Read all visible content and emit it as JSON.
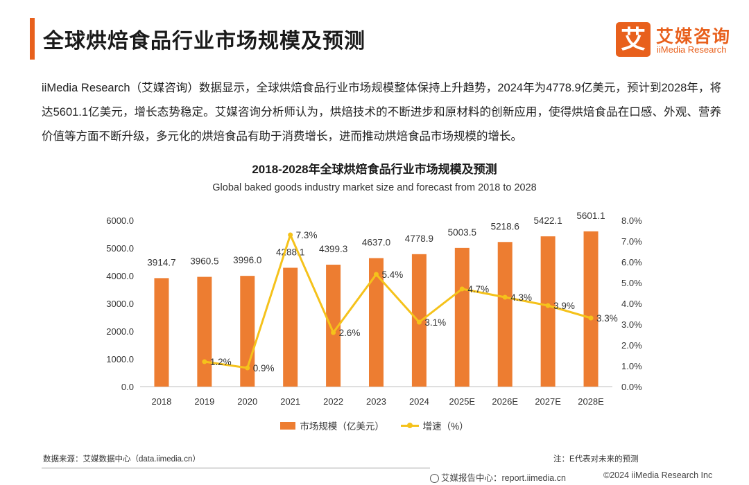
{
  "header": {
    "title": "全球烘焙食品行业市场规模及预测",
    "logo_mark": "艾",
    "logo_cn": "艾媒咨询",
    "logo_en": "iiMedia Research"
  },
  "intro": "iiMedia Research（艾媒咨询）数据显示，全球烘焙食品行业市场规模整体保持上升趋势，2024年为4778.9亿美元，预计到2028年，将达5601.1亿美元，增长态势稳定。艾媒咨询分析师认为，烘焙技术的不断进步和原材料的创新应用，使得烘焙食品在口感、外观、营养价值等方面不断升级，多元化的烘焙食品有助于消费增长，进而推动烘焙食品市场规模的增长。",
  "chart_data": {
    "type": "bar",
    "title": "2018-2028年全球烘焙食品行业市场规模及预测",
    "subtitle": "Global baked goods industry market size and forecast from 2018 to 2028",
    "categories": [
      "2018",
      "2019",
      "2020",
      "2021",
      "2022",
      "2023",
      "2024",
      "2025E",
      "2026E",
      "2027E",
      "2028E"
    ],
    "series": [
      {
        "name": "市场规模（亿美元）",
        "type": "bar",
        "axis": "left",
        "values": [
          3914.7,
          3960.5,
          3996.0,
          4288.1,
          4399.3,
          4637.0,
          4778.9,
          5003.5,
          5218.6,
          5422.1,
          5601.1
        ],
        "labels": [
          "3914.7",
          "3960.5",
          "3996.0",
          "4288.1",
          "4399.3",
          "4637.0",
          "4778.9",
          "5003.5",
          "5218.6",
          "5422.1",
          "5601.1"
        ]
      },
      {
        "name": "增速（%）",
        "type": "line",
        "axis": "right",
        "values": [
          null,
          1.2,
          0.9,
          7.3,
          2.6,
          5.4,
          3.1,
          4.7,
          4.3,
          3.9,
          3.3
        ],
        "labels": [
          "",
          "1.2%",
          "0.9%",
          "7.3%",
          "2.6%",
          "5.4%",
          "3.1%",
          "4.7%",
          "4.3%",
          "3.9%",
          "3.3%"
        ]
      }
    ],
    "y_left": {
      "min": 0,
      "max": 6000,
      "ticks": [
        "0.0",
        "1000.0",
        "2000.0",
        "3000.0",
        "4000.0",
        "5000.0",
        "6000.0"
      ]
    },
    "y_right": {
      "min": 0,
      "max": 8,
      "ticks": [
        "0.0%",
        "1.0%",
        "2.0%",
        "3.0%",
        "4.0%",
        "5.0%",
        "6.0%",
        "7.0%",
        "8.0%"
      ]
    },
    "grid": false,
    "legend_position": "bottom",
    "colors": {
      "bar": "#ed7d31",
      "line": "#f5c21b"
    }
  },
  "legend": {
    "bar_label": "市场规模（亿美元）",
    "line_label": "增速（%）"
  },
  "footer": {
    "source": "数据来源：艾媒数据中心（data.iimedia.cn）",
    "note": "注：E代表对未来的预测",
    "report": "艾媒报告中心：report.iimedia.cn",
    "copyright": "©2024  iiMedia Research  Inc"
  }
}
